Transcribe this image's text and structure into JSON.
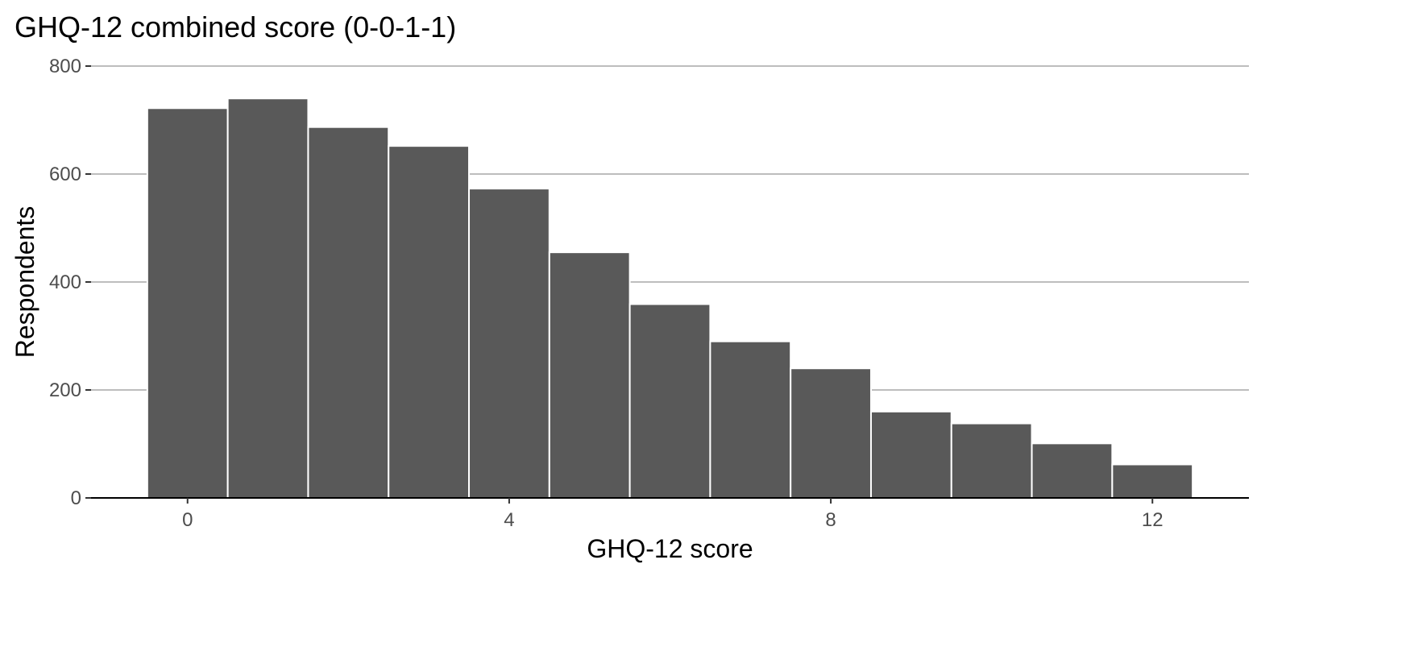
{
  "chart_data": {
    "type": "bar",
    "title": "GHQ-12 combined score (0-0-1-1)",
    "xlabel": "GHQ-12 score",
    "ylabel": "Respondents",
    "x": [
      0,
      1,
      2,
      3,
      4,
      5,
      6,
      7,
      8,
      9,
      10,
      11,
      12
    ],
    "values": [
      722,
      740,
      687,
      652,
      573,
      455,
      359,
      290,
      240,
      160,
      138,
      101,
      62
    ],
    "xticks": [
      0,
      4,
      8,
      12
    ],
    "xtick_labels": [
      "0",
      "4",
      "8",
      "12"
    ],
    "yticks": [
      0,
      200,
      400,
      600,
      800
    ],
    "ytick_labels": [
      "0",
      "200",
      "400",
      "600",
      "800"
    ],
    "xlim": [
      -1.2,
      13.2
    ],
    "ylim": [
      0,
      800
    ],
    "grid": "horizontal",
    "colors": {
      "bar_fill": "#595959",
      "bar_outline": "#ffffff",
      "grid": "#bdbdbd",
      "axis": "#000000",
      "tick_label": "#4d4d4d"
    }
  }
}
